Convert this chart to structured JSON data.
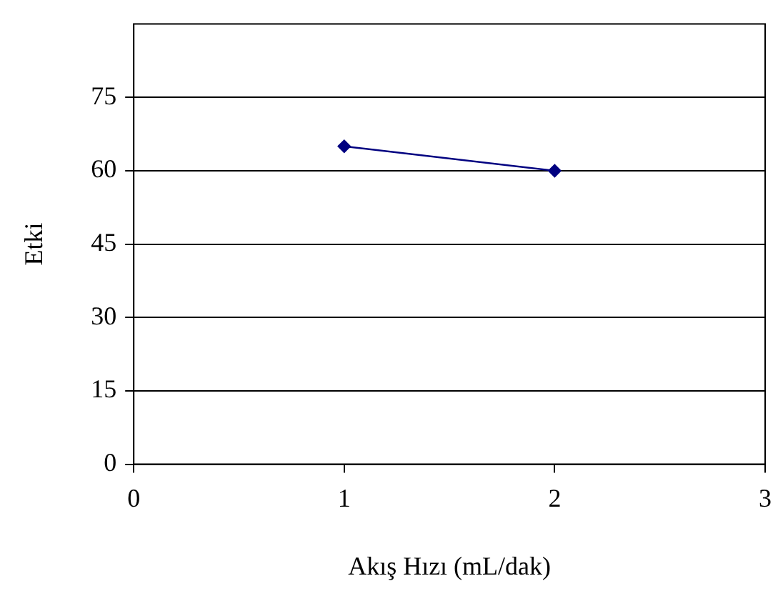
{
  "chart_data": {
    "type": "line",
    "xlabel": "Akış Hızı (mL/dak)",
    "ylabel": "Etki",
    "x": [
      1,
      2
    ],
    "series": [
      {
        "color": "#000080",
        "values": [
          65,
          60
        ]
      }
    ],
    "xlim": [
      0,
      3
    ],
    "xticks": [
      0,
      1,
      2,
      3
    ],
    "ylim": [
      0,
      90
    ],
    "yticks": [
      0,
      15,
      30,
      45,
      60,
      75
    ],
    "grid": "y",
    "legend": false,
    "marker": "diamond",
    "line_style": "solid"
  }
}
